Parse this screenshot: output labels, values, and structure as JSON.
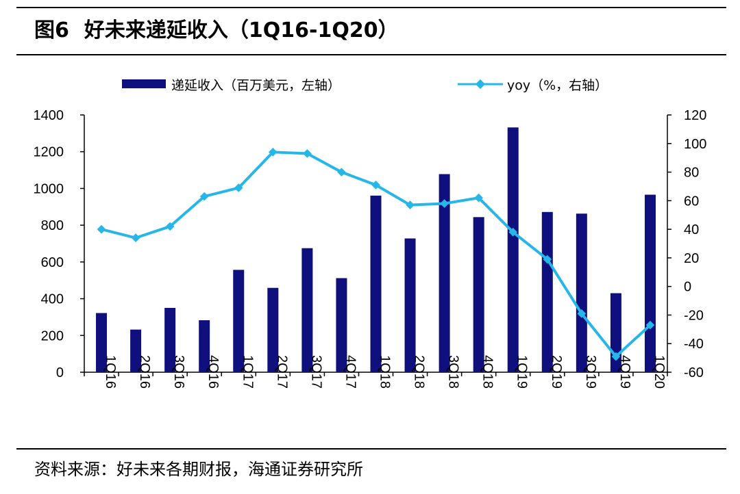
{
  "figure": {
    "title_prefix": "图6",
    "title": "好未来递延收入（1Q16-1Q20）",
    "source": "资料来源：好未来各期财报，海通证券研究所"
  },
  "colors": {
    "bar": "#0f0f7d",
    "line": "#26b6e8",
    "axis": "#000000"
  },
  "chart_data": {
    "type": "bar+line",
    "categories": [
      "1Q16",
      "2Q16",
      "3Q16",
      "4Q16",
      "1Q17",
      "2Q17",
      "3Q17",
      "4Q17",
      "1Q18",
      "2Q18",
      "3Q18",
      "4Q18",
      "1Q19",
      "2Q19",
      "3Q19",
      "4Q19",
      "1Q20"
    ],
    "series": [
      {
        "name": "递延收入（百万美元，左轴）",
        "type": "bar",
        "axis": "left",
        "values": [
          322,
          232,
          350,
          283,
          557,
          459,
          675,
          512,
          961,
          728,
          1078,
          844,
          1332,
          872,
          863,
          430,
          966
        ]
      },
      {
        "name": "yoy（%，右轴）",
        "type": "line",
        "axis": "right",
        "values": [
          40,
          34,
          42,
          63,
          69,
          94,
          93,
          80,
          71,
          57,
          58,
          62,
          38,
          19,
          -19,
          -49,
          -27
        ]
      }
    ],
    "left_axis": {
      "min": 0,
      "max": 1400,
      "ticks": [
        0,
        200,
        400,
        600,
        800,
        1000,
        1200,
        1400
      ]
    },
    "right_axis": {
      "min": -60,
      "max": 120,
      "ticks": [
        -60,
        -40,
        -20,
        0,
        20,
        40,
        60,
        80,
        100,
        120
      ]
    },
    "legend_position": "top",
    "grid": false
  }
}
